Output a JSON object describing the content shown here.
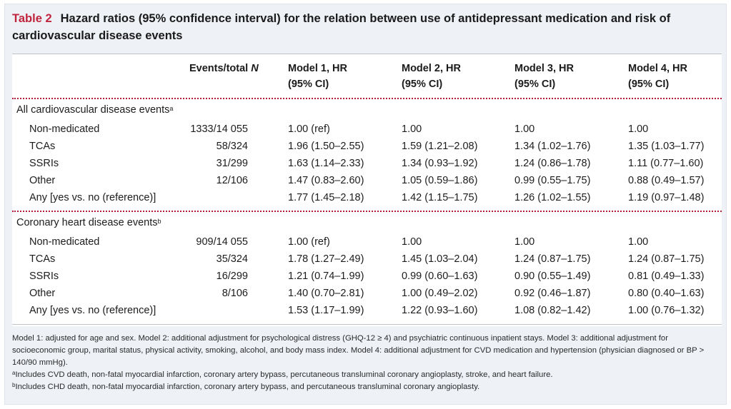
{
  "table": {
    "label": "Table 2",
    "title": "Hazard ratios (95% confidence interval) for the relation between use of antidepressant medication and risk of cardiovascular disease events",
    "headers": {
      "events": "Events/total N",
      "model1": [
        "Model 1, HR",
        "(95% CI)"
      ],
      "model2": [
        "Model 2, HR",
        "(95% CI)"
      ],
      "model3": [
        "Model 3, HR",
        "(95% CI)"
      ],
      "model4": [
        "Model 4, HR",
        "(95% CI)"
      ]
    },
    "sections": [
      {
        "title": "All cardiovascular disease events",
        "footnote_mark": "a",
        "rows": [
          {
            "label": "Non-medicated",
            "events": "1333/14 055",
            "m1": "1.00 (ref)",
            "m2": "1.00",
            "m3": "1.00",
            "m4": "1.00"
          },
          {
            "label": "TCAs",
            "events": "58/324",
            "m1": "1.96 (1.50–2.55)",
            "m2": "1.59 (1.21–2.08)",
            "m3": "1.34 (1.02–1.76)",
            "m4": "1.35 (1.03–1.77)"
          },
          {
            "label": "SSRIs",
            "events": "31/299",
            "m1": "1.63 (1.14–2.33)",
            "m2": "1.34 (0.93–1.92)",
            "m3": "1.24 (0.86–1.78)",
            "m4": "1.11 (0.77–1.60)"
          },
          {
            "label": "Other",
            "events": "12/106",
            "m1": "1.47 (0.83–2.60)",
            "m2": "1.05 (0.59–1.86)",
            "m3": "0.99 (0.55–1.75)",
            "m4": "0.88 (0.49–1.57)"
          },
          {
            "label": "Any [yes vs. no (reference)]",
            "events": "",
            "m1": "1.77 (1.45–2.18)",
            "m2": "1.42 (1.15–1.75)",
            "m3": "1.26 (1.02–1.55)",
            "m4": "1.19 (0.97–1.48)"
          }
        ]
      },
      {
        "title": "Coronary heart disease events",
        "footnote_mark": "b",
        "rows": [
          {
            "label": "Non-medicated",
            "events": "909/14 055",
            "m1": "1.00 (ref)",
            "m2": "1.00",
            "m3": "1.00",
            "m4": "1.00"
          },
          {
            "label": "TCAs",
            "events": "35/324",
            "m1": "1.78 (1.27–2.49)",
            "m2": "1.45 (1.03–2.04)",
            "m3": "1.24 (0.87–1.75)",
            "m4": "1.24 (0.87–1.75)"
          },
          {
            "label": "SSRIs",
            "events": "16/299",
            "m1": "1.21 (0.74–1.99)",
            "m2": "0.99 (0.60–1.63)",
            "m3": "0.90 (0.55–1.49)",
            "m4": "0.81 (0.49–1.33)"
          },
          {
            "label": "Other",
            "events": "8/106",
            "m1": "1.40 (0.70–2.81)",
            "m2": "1.00 (0.49–2.02)",
            "m3": "0.92 (0.46–1.87)",
            "m4": "0.80 (0.40–1.63)"
          },
          {
            "label": "Any [yes vs. no (reference)]",
            "events": "",
            "m1": "1.53 (1.17–1.99)",
            "m2": "1.22 (0.93–1.60)",
            "m3": "1.08 (0.82–1.42)",
            "m4": "1.00 (0.76–1.32)"
          }
        ]
      }
    ],
    "notes": {
      "models": "Model 1: adjusted for age and sex. Model 2: additional adjustment for psychological distress (GHQ-12 ≥ 4) and psychiatric continuous inpatient stays. Model 3: additional adjustment for socioeconomic group, marital status, physical activity, smoking, alcohol, and body mass index. Model 4: additional adjustment for CVD medication and hypertension (physician diagnosed or BP > 140/90 mmHg).",
      "a_mark": "a",
      "a_text": "Includes CVD death, non-fatal myocardial infarction, coronary artery bypass, percutaneous transluminal coronary angioplasty, stroke, and heart failure.",
      "b_mark": "b",
      "b_text": "Includes CHD death, non-fatal myocardial infarction, coronary artery bypass, and percutaneous transluminal coronary angioplasty."
    }
  }
}
